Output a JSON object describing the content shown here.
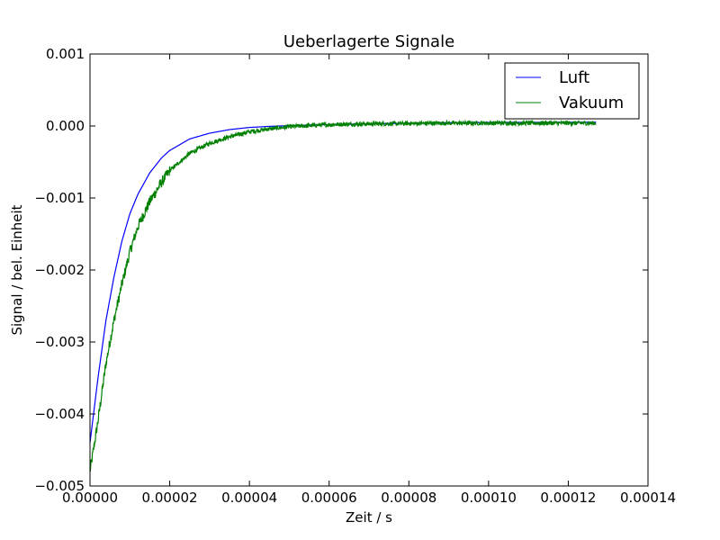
{
  "chart_data": {
    "type": "line",
    "title": "Ueberlagerte Signale",
    "xlabel": "Zeit / s",
    "ylabel": "Signal / bel. Einheit",
    "xlim": [
      0,
      0.00014
    ],
    "ylim": [
      -0.005,
      0.001
    ],
    "xticks": [
      0,
      2e-05,
      4e-05,
      6e-05,
      8e-05,
      0.0001,
      0.00012,
      0.00014
    ],
    "xtick_labels": [
      "0.00000",
      "0.00002",
      "0.00004",
      "0.00006",
      "0.00008",
      "0.00010",
      "0.00012",
      "0.00014"
    ],
    "yticks": [
      -0.005,
      -0.004,
      -0.003,
      -0.002,
      -0.001,
      0,
      0.001
    ],
    "ytick_labels": [
      "−0.005",
      "−0.004",
      "−0.003",
      "−0.002",
      "−0.001",
      "0.000",
      "0.001"
    ],
    "grid": false,
    "legend": "top-right",
    "series": [
      {
        "name": "Luft",
        "color": "#0000ff",
        "x": [
          0,
          2e-06,
          4e-06,
          6e-06,
          8e-06,
          1e-05,
          1.2e-05,
          1.5e-05,
          1.8e-05,
          2e-05,
          2.5e-05,
          3e-05,
          3.5e-05,
          4e-05,
          4.5e-05,
          5e-05,
          6e-05,
          7e-05,
          8e-05,
          9e-05,
          0.0001,
          0.00011,
          0.00012,
          0.000127
        ],
        "y": [
          -0.0044,
          -0.0035,
          -0.0027,
          -0.0021,
          -0.0016,
          -0.00122,
          -0.00095,
          -0.00065,
          -0.00044,
          -0.00034,
          -0.00018,
          -0.0001,
          -5e-05,
          -2e-05,
          -5e-06,
          5e-06,
          2e-05,
          3e-05,
          4e-05,
          4.5e-05,
          5e-05,
          5e-05,
          5.2e-05,
          5.2e-05
        ]
      },
      {
        "name": "Vakuum",
        "color": "#008000",
        "x": [
          0,
          2e-06,
          4e-06,
          6e-06,
          8e-06,
          1e-05,
          1.2e-05,
          1.5e-05,
          1.8e-05,
          2e-05,
          2.5e-05,
          3e-05,
          3.5e-05,
          4e-05,
          4.5e-05,
          5e-05,
          6e-05,
          7e-05,
          8e-05,
          9e-05,
          0.0001,
          0.00011,
          0.00012,
          0.000127
        ],
        "y": [
          -0.0048,
          -0.0041,
          -0.0033,
          -0.0027,
          -0.0022,
          -0.00175,
          -0.0014,
          -0.00105,
          -0.00078,
          -0.00062,
          -0.00038,
          -0.00024,
          -0.00015,
          -8e-05,
          -4e-05,
          -1e-05,
          2e-05,
          3e-05,
          3.5e-05,
          4e-05,
          4e-05,
          4e-05,
          4e-05,
          4e-05
        ],
        "noise_amplitude": 3e-05
      }
    ]
  }
}
